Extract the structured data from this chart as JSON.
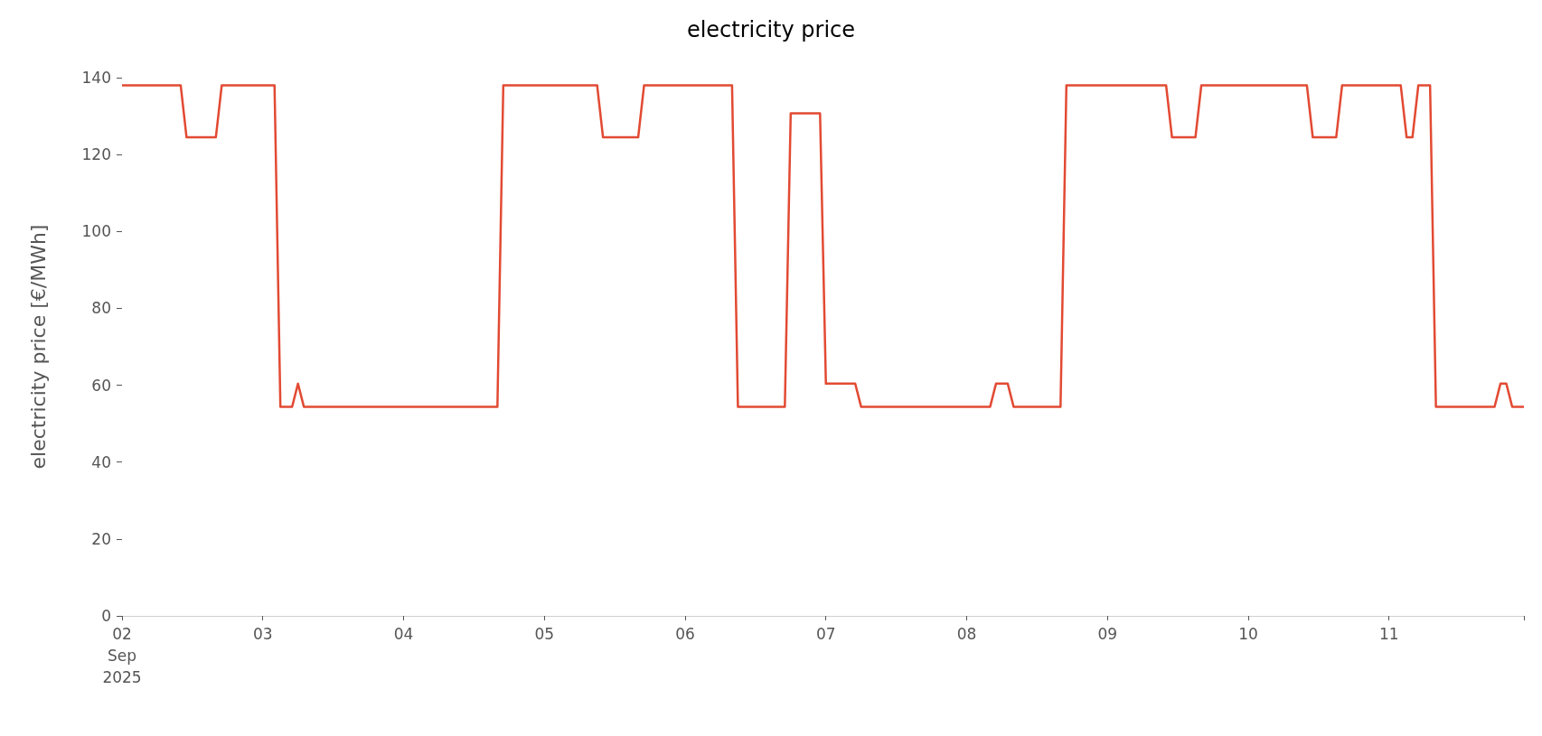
{
  "chart_data": {
    "type": "line",
    "title": "electricity price",
    "ylabel": "electricity price [€/MWh]",
    "x": [
      "2025-09-02T00:00",
      "2025-09-02T10:00",
      "2025-09-02T11:00",
      "2025-09-02T16:00",
      "2025-09-02T17:00",
      "2025-09-03T02:00",
      "2025-09-03T03:00",
      "2025-09-03T05:00",
      "2025-09-03T06:00",
      "2025-09-03T07:00",
      "2025-09-04T16:00",
      "2025-09-04T17:00",
      "2025-09-05T09:00",
      "2025-09-05T10:00",
      "2025-09-05T16:00",
      "2025-09-05T17:00",
      "2025-09-06T08:00",
      "2025-09-06T09:00",
      "2025-09-06T17:00",
      "2025-09-06T18:00",
      "2025-09-06T23:00",
      "2025-09-07T00:00",
      "2025-09-07T05:00",
      "2025-09-07T06:00",
      "2025-09-08T04:00",
      "2025-09-08T05:00",
      "2025-09-08T07:00",
      "2025-09-08T08:00",
      "2025-09-08T16:00",
      "2025-09-08T17:00",
      "2025-09-09T10:00",
      "2025-09-09T11:00",
      "2025-09-09T15:00",
      "2025-09-09T16:00",
      "2025-09-10T10:00",
      "2025-09-10T11:00",
      "2025-09-10T15:00",
      "2025-09-10T16:00",
      "2025-09-11T02:00",
      "2025-09-11T03:00",
      "2025-09-11T04:00",
      "2025-09-11T05:00",
      "2025-09-11T07:00",
      "2025-09-11T08:00",
      "2025-09-11T18:00",
      "2025-09-11T19:00",
      "2025-09-11T20:00",
      "2025-09-11T21:00",
      "2025-09-11T23:00"
    ],
    "series": [
      {
        "color": "#e24a33",
        "values": [
          138,
          138,
          124.5,
          124.5,
          138,
          138,
          54.4,
          54.4,
          60.4,
          54.4,
          54.4,
          138,
          138,
          124.5,
          124.5,
          138,
          138,
          54.4,
          54.4,
          130.7,
          130.7,
          60.4,
          60.4,
          54.4,
          54.4,
          60.4,
          60.4,
          54.4,
          54.4,
          138,
          138,
          124.5,
          124.5,
          138,
          138,
          124.5,
          124.5,
          138,
          138,
          124.5,
          124.5,
          138,
          138,
          54.4,
          54.4,
          60.4,
          60.4,
          54.4,
          54.4
        ]
      }
    ],
    "xlim": [
      "2025-09-02T00:00",
      "2025-09-11T23:00"
    ],
    "xticks": [
      {
        "value": "2025-09-02",
        "label": "02\nSep\n2025"
      },
      {
        "value": "2025-09-03",
        "label": "03"
      },
      {
        "value": "2025-09-04",
        "label": "04"
      },
      {
        "value": "2025-09-05",
        "label": "05"
      },
      {
        "value": "2025-09-06",
        "label": "06"
      },
      {
        "value": "2025-09-07",
        "label": "07"
      },
      {
        "value": "2025-09-08",
        "label": "08"
      },
      {
        "value": "2025-09-09",
        "label": "09"
      },
      {
        "value": "2025-09-10",
        "label": "10"
      },
      {
        "value": "2025-09-11",
        "label": "11"
      },
      {
        "value": "2025-09-11T23:00",
        "label": null
      }
    ],
    "ylim": [
      0,
      140
    ],
    "yticks": [
      0,
      20,
      40,
      60,
      80,
      100,
      120,
      140
    ],
    "grid": false,
    "marker": "none",
    "line_style": "solid"
  }
}
